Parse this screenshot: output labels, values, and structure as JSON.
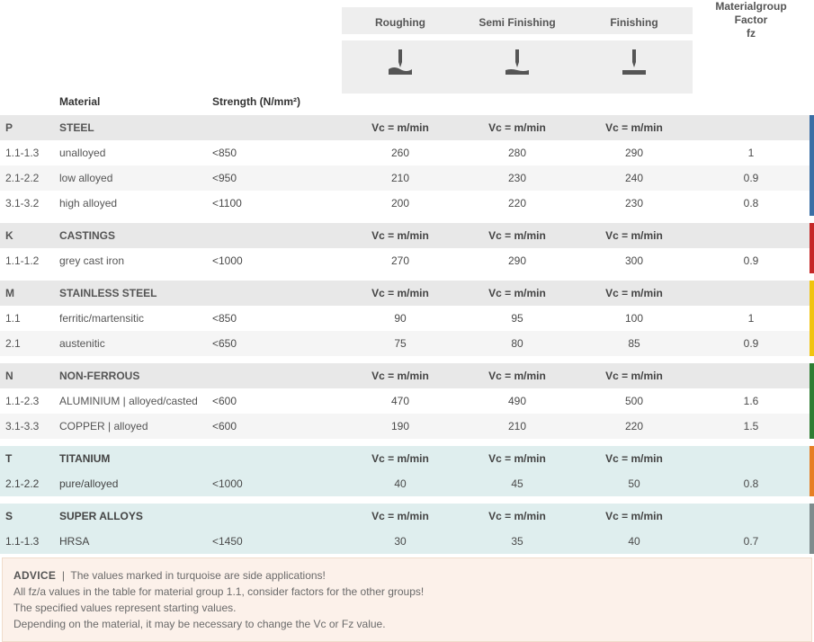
{
  "columns": {
    "material": "Material",
    "strength": "Strength (N/mm²)",
    "ops": [
      "Roughing",
      "Semi Finishing",
      "Finishing"
    ],
    "factor_lines": [
      "Materialgroup",
      "Factor",
      "fz"
    ],
    "vc_label": "Vc = m/min"
  },
  "colors": {
    "P": "#3b6ea5",
    "K": "#c62828",
    "M": "#f1c40f",
    "N": "#2e7d32",
    "T": "#e67e22",
    "S": "#7f8c8d",
    "header_bg": "#eeeeee",
    "group_bg": "#e8e8e8",
    "alt_bg": "#f5f5f5",
    "sideapp_bg": "#dfeeee",
    "advice_bg": "#fcf1ea",
    "advice_border": "#f0dccb"
  },
  "groups": [
    {
      "code": "P",
      "name": "STEEL",
      "rows": [
        {
          "code": "1.1-1.3",
          "mat": "unalloyed",
          "strength": "<850",
          "rough": "260",
          "semi": "280",
          "fin": "290",
          "fz": "1"
        },
        {
          "code": "2.1-2.2",
          "mat": "low alloyed",
          "strength": "<950",
          "rough": "210",
          "semi": "230",
          "fin": "240",
          "fz": "0.9"
        },
        {
          "code": "3.1-3.2",
          "mat": "high alloyed",
          "strength": "<1100",
          "rough": "200",
          "semi": "220",
          "fin": "230",
          "fz": "0.8"
        }
      ]
    },
    {
      "code": "K",
      "name": "CASTINGS",
      "rows": [
        {
          "code": "1.1-1.2",
          "mat": "grey cast iron",
          "strength": "<1000",
          "rough": "270",
          "semi": "290",
          "fin": "300",
          "fz": "0.9"
        }
      ]
    },
    {
      "code": "M",
      "name": "STAINLESS STEEL",
      "rows": [
        {
          "code": "1.1",
          "mat": "ferritic/martensitic",
          "strength": "<850",
          "rough": "90",
          "semi": "95",
          "fin": "100",
          "fz": "1"
        },
        {
          "code": "2.1",
          "mat": "austenitic",
          "strength": "<650",
          "rough": "75",
          "semi": "80",
          "fin": "85",
          "fz": "0.9"
        }
      ]
    },
    {
      "code": "N",
      "name": "NON-FERROUS",
      "rows": [
        {
          "code": "1.1-2.3",
          "mat": "ALUMINIUM | alloyed/casted",
          "strength": "<600",
          "rough": "470",
          "semi": "490",
          "fin": "500",
          "fz": "1.6"
        },
        {
          "code": "3.1-3.3",
          "mat": "COPPER | alloyed",
          "strength": "<600",
          "rough": "190",
          "semi": "210",
          "fin": "220",
          "fz": "1.5"
        }
      ]
    },
    {
      "code": "T",
      "name": "TITANIUM",
      "sideapp": true,
      "rows": [
        {
          "code": "2.1-2.2",
          "mat": "pure/alloyed",
          "strength": "<1000",
          "rough": "40",
          "semi": "45",
          "fin": "50",
          "fz": "0.8"
        }
      ]
    },
    {
      "code": "S",
      "name": "SUPER ALLOYS",
      "sideapp": true,
      "rows": [
        {
          "code": "1.1-1.3",
          "mat": "HRSA",
          "strength": "<1450",
          "rough": "30",
          "semi": "35",
          "fin": "40",
          "fz": "0.7"
        }
      ]
    }
  ],
  "advice": {
    "title": "ADVICE",
    "lines": [
      "The values marked in turquoise are side applications!",
      "All fz/a values in the table for material group 1.1, consider factors for the other groups!",
      "The specified values represent starting values.",
      "Depending on the material, it may be necessary to change the Vc or Fz value."
    ]
  }
}
